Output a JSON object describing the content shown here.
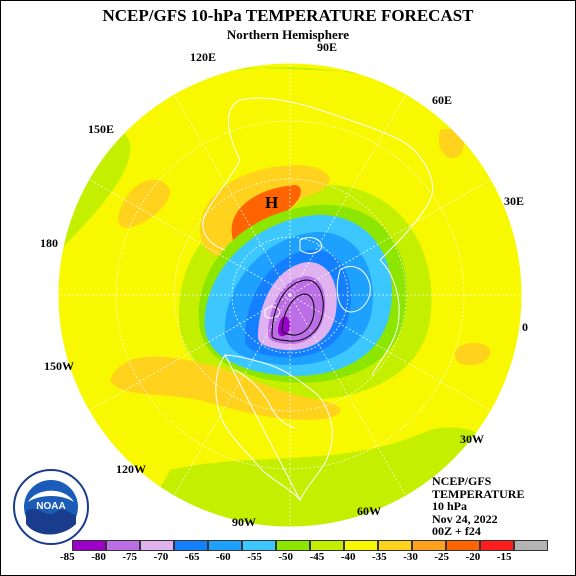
{
  "title": "NCEP/GFS 10-hPa TEMPERATURE FORECAST",
  "subtitle": "Northern Hemisphere",
  "longitude_labels": [
    "90E",
    "60E",
    "30E",
    "0",
    "30W",
    "60W",
    "90W",
    "120W",
    "150W",
    "180",
    "150E",
    "120E"
  ],
  "high_marker": "H",
  "info": {
    "line1": "NCEP/GFS",
    "line2": "TEMPERATURE",
    "line3": "10 hPa",
    "line4": "Nov 24, 2022",
    "line5": "00Z + f24"
  },
  "colorbar": {
    "ticks": [
      "-85",
      "-80",
      "-75",
      "-70",
      "-65",
      "-60",
      "-55",
      "-50",
      "-45",
      "-40",
      "-35",
      "-30",
      "-25",
      "-20",
      "-15"
    ],
    "colors": [
      "#9b00c8",
      "#bb6ee6",
      "#e0b2f0",
      "#1480ff",
      "#1ea0ff",
      "#3cc8ff",
      "#8ce600",
      "#c4f000",
      "#f8f800",
      "#ffd21e",
      "#ffa01e",
      "#ff6400",
      "#ff1e1e",
      "#b4b4b4"
    ]
  },
  "logo_text": "NOAA"
}
